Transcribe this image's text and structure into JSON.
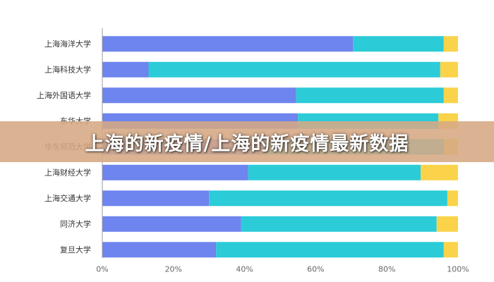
{
  "banner": {
    "title": "上海的新疫情/上海的新疫情最新数据"
  },
  "colors": {
    "series1": "#6e84ee",
    "series2": "#2ccbd8",
    "series3": "#fad34a",
    "axis": "#999999",
    "grid": "#eeeeee",
    "label": "#333333"
  },
  "chart_data": {
    "type": "bar",
    "orientation": "horizontal",
    "stacked": true,
    "categories": [
      "上海海洋大学",
      "上海科技大学",
      "上海外国语大学",
      "东华大学",
      "华东师范大学",
      "上海财经大学",
      "上海交通大学",
      "同济大学",
      "复旦大学"
    ],
    "series": [
      {
        "values": [
          70.5,
          13,
          54.5,
          55,
          45,
          41,
          30,
          39,
          32
        ]
      },
      {
        "values": [
          25.5,
          82,
          41.5,
          39.5,
          51,
          48.5,
          67,
          55,
          64
        ]
      },
      {
        "values": [
          4,
          5,
          4,
          5.5,
          4,
          10.5,
          3,
          6,
          4
        ]
      }
    ],
    "xlim": [
      0,
      100
    ],
    "xticks": [
      "0%",
      "20%",
      "40%",
      "60%",
      "80%",
      "100%"
    ],
    "xlabel": "",
    "ylabel": "",
    "grid": false
  }
}
